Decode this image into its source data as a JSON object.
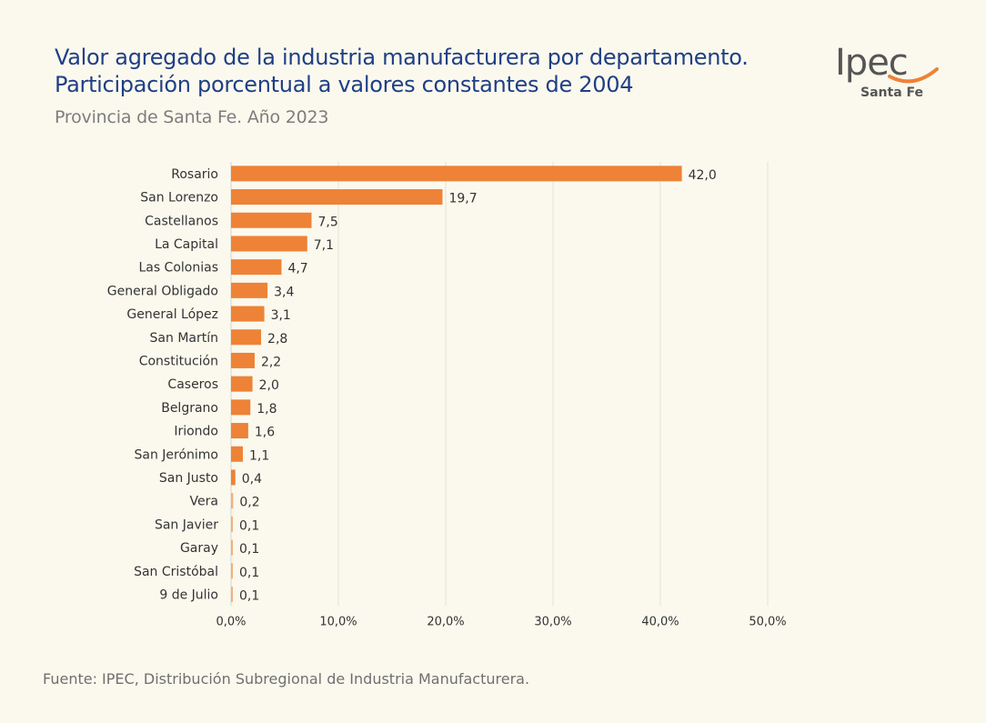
{
  "header": {
    "title_line1": "Valor agregado de la industria manufacturera por departamento.",
    "title_line2": "Participación porcentual a valores constantes de 2004",
    "subtitle": "Provincia de Santa Fe. Año 2023"
  },
  "logo": {
    "text": "Ipec",
    "sub": "Santa Fe"
  },
  "footer": {
    "source": "Fuente: IPEC, Distribución Subregional de Industria Manufacturera."
  },
  "colors": {
    "bar": "#ee8236",
    "bar_light": "#f2b07c",
    "title": "#1f3f86",
    "grid": "#e6e3d5",
    "text": "#333333"
  },
  "chart_data": {
    "type": "bar",
    "orientation": "horizontal",
    "categories": [
      "Rosario",
      "San Lorenzo",
      "Castellanos",
      "La Capital",
      "Las Colonias",
      "General Obligado",
      "General López",
      "San Martín",
      "Constitución",
      "Caseros",
      "Belgrano",
      "Iriondo",
      "San Jerónimo",
      "San Justo",
      "Vera",
      "San Javier",
      "Garay",
      "San Cristóbal",
      "9 de Julio"
    ],
    "values": [
      42.0,
      19.7,
      7.5,
      7.1,
      4.7,
      3.4,
      3.1,
      2.8,
      2.2,
      2.0,
      1.8,
      1.6,
      1.1,
      0.4,
      0.2,
      0.1,
      0.1,
      0.1,
      0.1
    ],
    "value_labels": [
      "42,0",
      "19,7",
      "7,5",
      "7,1",
      "4,7",
      "3,4",
      "3,1",
      "2,8",
      "2,2",
      "2,0",
      "1,8",
      "1,6",
      "1,1",
      "0,4",
      "0,2",
      "0,1",
      "0,1",
      "0,1",
      "0,1"
    ],
    "xlim": [
      0,
      50
    ],
    "xticks": [
      0,
      10,
      20,
      30,
      40,
      50
    ],
    "xtick_labels": [
      "0,0%",
      "10,0%",
      "20,0%",
      "30,0%",
      "40,0%",
      "50,0%"
    ],
    "grid": true,
    "legend": "none"
  }
}
